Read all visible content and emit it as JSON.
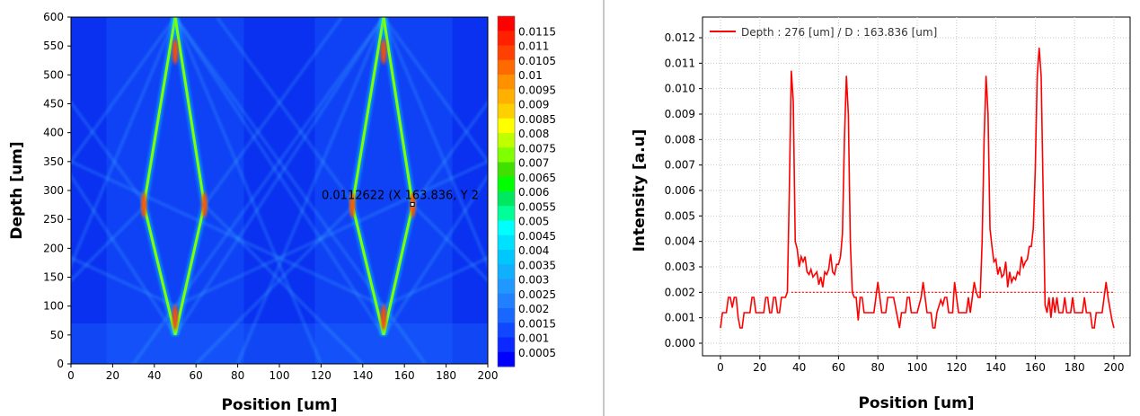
{
  "chart_data": [
    {
      "type": "heatmap",
      "xlabel": "Position [um]",
      "ylabel": "Depth [um]",
      "xlim": [
        0,
        200
      ],
      "ylim": [
        0,
        600
      ],
      "xticks": [
        0,
        20,
        40,
        60,
        80,
        100,
        120,
        140,
        160,
        180,
        200
      ],
      "yticks": [
        0,
        50,
        100,
        150,
        200,
        250,
        300,
        350,
        400,
        450,
        500,
        550,
        600
      ],
      "colorbar": {
        "labels": [
          "0.0115",
          "0.011",
          "0.0105",
          "0.01",
          "0.0095",
          "0.009",
          "0.0085",
          "0.008",
          "0.0075",
          "0.007",
          "0.0065",
          "0.006",
          "0.0055",
          "0.005",
          "0.0045",
          "0.004",
          "0.0035",
          "0.003",
          "0.0025",
          "0.002",
          "0.0015",
          "0.001",
          "0.0005"
        ],
        "colors": [
          "#ff0000",
          "#ff2000",
          "#ff4000",
          "#ff6a00",
          "#ff9000",
          "#ffb000",
          "#ffd000",
          "#ffff00",
          "#c0ff00",
          "#80ff00",
          "#40e000",
          "#00ff00",
          "#00e860",
          "#00ff99",
          "#00ffff",
          "#00e0ff",
          "#00c8ff",
          "#10b0ff",
          "#2098ff",
          "#2080ff",
          "#1868ff",
          "#1048ff",
          "#0a28ff",
          "#0000ff"
        ]
      },
      "cursor": {
        "label": "0.0112622 (X 163.836, Y 2",
        "x": 163.836,
        "y": 276
      }
    },
    {
      "type": "line",
      "xlabel": "Position [um]",
      "ylabel": "Intensity [a.u]",
      "xlim": [
        0,
        200
      ],
      "ylim": [
        0,
        0.012
      ],
      "xticks": [
        "0",
        "20",
        "40",
        "60",
        "80",
        "100",
        "120",
        "140",
        "160",
        "180",
        "200"
      ],
      "yticks": [
        "0.000",
        "0.001",
        "0.002",
        "0.003",
        "0.004",
        "0.005",
        "0.006",
        "0.007",
        "0.008",
        "0.009",
        "0.010",
        "0.011",
        "0.012"
      ],
      "grid": true,
      "legend_position": "top-left",
      "series": [
        {
          "name": "Depth : 276 [um] / D : 163.836 [um]",
          "color": "#ff0000",
          "points": [
            [
              0,
              0.0006
            ],
            [
              1,
              0.0012
            ],
            [
              3,
              0.0012
            ],
            [
              4,
              0.0018
            ],
            [
              5,
              0.0018
            ],
            [
              6,
              0.0014
            ],
            [
              7,
              0.0018
            ],
            [
              8,
              0.0018
            ],
            [
              9,
              0.001
            ],
            [
              10,
              0.0006
            ],
            [
              11,
              0.0006
            ],
            [
              12,
              0.0012
            ],
            [
              15,
              0.0012
            ],
            [
              16,
              0.0018
            ],
            [
              17,
              0.0018
            ],
            [
              18,
              0.0012
            ],
            [
              22,
              0.0012
            ],
            [
              23,
              0.0018
            ],
            [
              24,
              0.0018
            ],
            [
              25,
              0.0012
            ],
            [
              26,
              0.0012
            ],
            [
              27,
              0.0018
            ],
            [
              28,
              0.0018
            ],
            [
              29,
              0.0012
            ],
            [
              30,
              0.0012
            ],
            [
              31,
              0.0018
            ],
            [
              33,
              0.0018
            ],
            [
              34,
              0.002
            ],
            [
              35,
              0.006
            ],
            [
              36,
              0.0107
            ],
            [
              37,
              0.0095
            ],
            [
              38,
              0.004
            ],
            [
              39,
              0.0037
            ],
            [
              40,
              0.003
            ],
            [
              41,
              0.0034
            ],
            [
              42,
              0.0032
            ],
            [
              43,
              0.0034
            ],
            [
              44,
              0.0028
            ],
            [
              45,
              0.0027
            ],
            [
              46,
              0.0029
            ],
            [
              47,
              0.0026
            ],
            [
              48,
              0.0027
            ],
            [
              49,
              0.0028
            ],
            [
              50,
              0.0023
            ],
            [
              51,
              0.0026
            ],
            [
              52,
              0.0022
            ],
            [
              53,
              0.0028
            ],
            [
              54,
              0.0027
            ],
            [
              55,
              0.0029
            ],
            [
              56,
              0.0035
            ],
            [
              57,
              0.0028
            ],
            [
              58,
              0.0027
            ],
            [
              59,
              0.0031
            ],
            [
              60,
              0.0031
            ],
            [
              61,
              0.0034
            ],
            [
              62,
              0.0043
            ],
            [
              63,
              0.008
            ],
            [
              64,
              0.0105
            ],
            [
              65,
              0.009
            ],
            [
              66,
              0.004
            ],
            [
              67,
              0.002
            ],
            [
              68,
              0.0018
            ],
            [
              69,
              0.0018
            ],
            [
              70,
              0.0009
            ],
            [
              71,
              0.0018
            ],
            [
              72,
              0.0018
            ],
            [
              73,
              0.0012
            ],
            [
              78,
              0.0012
            ],
            [
              79,
              0.0018
            ],
            [
              80,
              0.0024
            ],
            [
              81,
              0.0018
            ],
            [
              82,
              0.0012
            ],
            [
              84,
              0.0012
            ],
            [
              85,
              0.0018
            ],
            [
              88,
              0.0018
            ],
            [
              89,
              0.0014
            ],
            [
              90,
              0.001
            ],
            [
              91,
              0.0006
            ],
            [
              92,
              0.0012
            ],
            [
              94,
              0.0012
            ],
            [
              95,
              0.0018
            ],
            [
              96,
              0.0018
            ],
            [
              97,
              0.0012
            ],
            [
              100,
              0.0012
            ],
            [
              102,
              0.0018
            ],
            [
              103,
              0.0024
            ],
            [
              104,
              0.0018
            ],
            [
              105,
              0.0012
            ],
            [
              107,
              0.0012
            ],
            [
              108,
              0.0006
            ],
            [
              109,
              0.0006
            ],
            [
              110,
              0.0012
            ],
            [
              112,
              0.0017
            ],
            [
              113,
              0.0015
            ],
            [
              114,
              0.0018
            ],
            [
              115,
              0.0018
            ],
            [
              116,
              0.0012
            ],
            [
              118,
              0.0012
            ],
            [
              119,
              0.0024
            ],
            [
              120,
              0.0018
            ],
            [
              121,
              0.0012
            ],
            [
              125,
              0.0012
            ],
            [
              126,
              0.0018
            ],
            [
              127,
              0.0012
            ],
            [
              129,
              0.0024
            ],
            [
              130,
              0.002
            ],
            [
              131,
              0.0018
            ],
            [
              132,
              0.0018
            ],
            [
              133,
              0.004
            ],
            [
              134,
              0.008
            ],
            [
              135,
              0.0105
            ],
            [
              136,
              0.009
            ],
            [
              137,
              0.0045
            ],
            [
              138,
              0.0038
            ],
            [
              139,
              0.0032
            ],
            [
              140,
              0.0033
            ],
            [
              141,
              0.0027
            ],
            [
              142,
              0.003
            ],
            [
              143,
              0.0026
            ],
            [
              144,
              0.0027
            ],
            [
              145,
              0.0032
            ],
            [
              146,
              0.0022
            ],
            [
              147,
              0.0028
            ],
            [
              148,
              0.0024
            ],
            [
              149,
              0.0026
            ],
            [
              150,
              0.0025
            ],
            [
              151,
              0.0028
            ],
            [
              152,
              0.0027
            ],
            [
              153,
              0.0034
            ],
            [
              154,
              0.003
            ],
            [
              155,
              0.0032
            ],
            [
              156,
              0.0033
            ],
            [
              157,
              0.0038
            ],
            [
              158,
              0.0038
            ],
            [
              159,
              0.0045
            ],
            [
              160,
              0.0068
            ],
            [
              161,
              0.0105
            ],
            [
              162,
              0.0116
            ],
            [
              163,
              0.0105
            ],
            [
              164,
              0.006
            ],
            [
              165,
              0.0015
            ],
            [
              166,
              0.0012
            ],
            [
              167,
              0.0018
            ],
            [
              168,
              0.001
            ],
            [
              169,
              0.0018
            ],
            [
              170,
              0.0012
            ],
            [
              171,
              0.0018
            ],
            [
              172,
              0.0012
            ],
            [
              174,
              0.0012
            ],
            [
              175,
              0.0018
            ],
            [
              176,
              0.0012
            ],
            [
              178,
              0.0012
            ],
            [
              179,
              0.0018
            ],
            [
              180,
              0.0012
            ],
            [
              184,
              0.0012
            ],
            [
              185,
              0.0018
            ],
            [
              186,
              0.0012
            ],
            [
              188,
              0.0012
            ],
            [
              189,
              0.0006
            ],
            [
              190,
              0.0006
            ],
            [
              191,
              0.0012
            ],
            [
              194,
              0.0012
            ],
            [
              195,
              0.0018
            ],
            [
              196,
              0.0024
            ],
            [
              197,
              0.0018
            ],
            [
              199,
              0.0009
            ],
            [
              200,
              0.0006
            ]
          ]
        }
      ],
      "threshold": {
        "value": 0.002,
        "from": 36,
        "to": 200,
        "style": "dotted"
      }
    }
  ]
}
